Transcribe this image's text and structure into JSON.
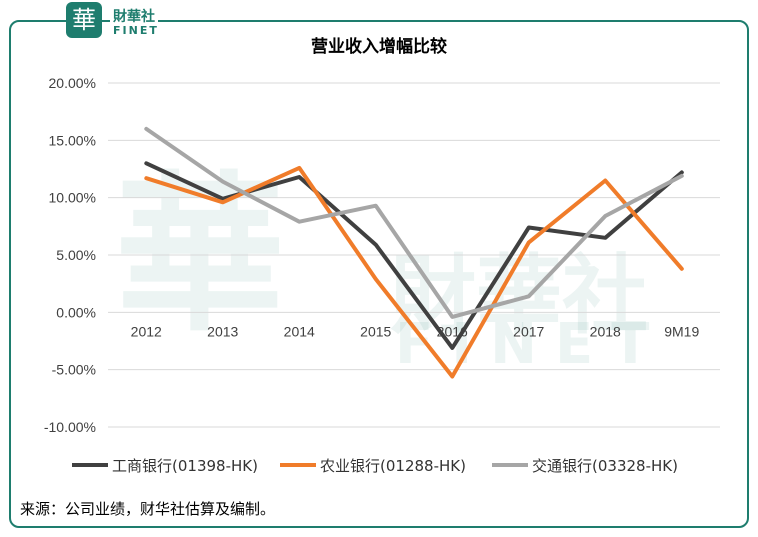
{
  "brand": {
    "logo_char": "華",
    "name_cn": "財華社",
    "name_en": "FINET"
  },
  "watermark": {
    "logo_char": "華",
    "name_cn": "財華社",
    "name_en": "FINET"
  },
  "source_note": "来源：公司业绩，财华社估算及编制。",
  "colors": {
    "frame": "#1e7d6e",
    "icbc": "#404040",
    "abc": "#f07c2a",
    "bocom": "#a6a6a6",
    "grid": "#d9d9d9"
  },
  "chart_data": {
    "type": "line",
    "title": "营业收入增幅比较",
    "categories": [
      "2012",
      "2013",
      "2014",
      "2015",
      "2016",
      "2017",
      "2018",
      "9M19"
    ],
    "y_ticks": [
      "20.00%",
      "15.00%",
      "10.00%",
      "5.00%",
      "0.00%",
      "-5.00%",
      "-10.00%"
    ],
    "ylim": [
      -10,
      20
    ],
    "grid": true,
    "legend_position": "bottom",
    "series": [
      {
        "name": "工商银行(01398-HK)",
        "color_key": "icbc",
        "values": [
          13.0,
          9.9,
          11.8,
          5.9,
          -3.1,
          7.4,
          6.5,
          12.2
        ]
      },
      {
        "name": "农业银行(01288-HK)",
        "color_key": "abc",
        "values": [
          11.7,
          9.6,
          12.6,
          2.9,
          -5.6,
          6.1,
          11.5,
          3.8
        ]
      },
      {
        "name": "交通银行(03328-HK)",
        "color_key": "bocom",
        "values": [
          16.0,
          11.4,
          7.9,
          9.3,
          -0.4,
          1.4,
          8.4,
          11.9
        ]
      }
    ]
  }
}
